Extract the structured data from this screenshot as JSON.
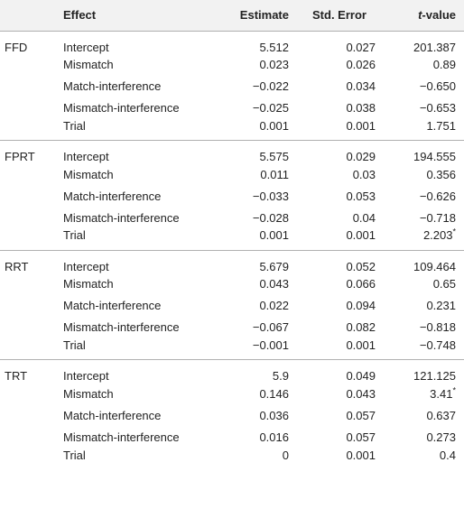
{
  "headers": {
    "group": "",
    "effect": "Effect",
    "estimate": "Estimate",
    "std_error": "Std. Error",
    "t_value_italic": "t",
    "t_value_rest": "-value"
  },
  "groups": [
    {
      "label": "FFD",
      "rows": [
        {
          "effect": "Intercept",
          "estimate": "5.512",
          "se": "0.027",
          "t": "201.387",
          "sig": ""
        },
        {
          "effect": "Mismatch",
          "estimate": "0.023",
          "se": "0.026",
          "t": "0.89",
          "sig": ""
        },
        {
          "effect": "Match-interference",
          "estimate": "−0.022",
          "se": "0.034",
          "t": "−0.650",
          "sig": ""
        },
        {
          "effect": "Mismatch-interference",
          "estimate": "−0.025",
          "se": "0.038",
          "t": "−0.653",
          "sig": ""
        },
        {
          "effect": "Trial",
          "estimate": "0.001",
          "se": "0.001",
          "t": "1.751",
          "sig": ""
        }
      ]
    },
    {
      "label": "FPRT",
      "rows": [
        {
          "effect": "Intercept",
          "estimate": "5.575",
          "se": "0.029",
          "t": "194.555",
          "sig": ""
        },
        {
          "effect": "Mismatch",
          "estimate": "0.011",
          "se": "0.03",
          "t": "0.356",
          "sig": ""
        },
        {
          "effect": "Match-interference",
          "estimate": "−0.033",
          "se": "0.053",
          "t": "−0.626",
          "sig": ""
        },
        {
          "effect": "Mismatch-interference",
          "estimate": "−0.028",
          "se": "0.04",
          "t": "−0.718",
          "sig": ""
        },
        {
          "effect": "Trial",
          "estimate": "0.001",
          "se": "0.001",
          "t": "2.203",
          "sig": "*"
        }
      ]
    },
    {
      "label": "RRT",
      "rows": [
        {
          "effect": "Intercept",
          "estimate": "5.679",
          "se": "0.052",
          "t": "109.464",
          "sig": ""
        },
        {
          "effect": "Mismatch",
          "estimate": "0.043",
          "se": "0.066",
          "t": "0.65",
          "sig": ""
        },
        {
          "effect": "Match-interference",
          "estimate": "0.022",
          "se": "0.094",
          "t": "0.231",
          "sig": ""
        },
        {
          "effect": "Mismatch-interference",
          "estimate": "−0.067",
          "se": "0.082",
          "t": "−0.818",
          "sig": ""
        },
        {
          "effect": "Trial",
          "estimate": "−0.001",
          "se": "0.001",
          "t": "−0.748",
          "sig": ""
        }
      ]
    },
    {
      "label": "TRT",
      "rows": [
        {
          "effect": "Intercept",
          "estimate": "5.9",
          "se": "0.049",
          "t": "121.125",
          "sig": ""
        },
        {
          "effect": "Mismatch",
          "estimate": "0.146",
          "se": "0.043",
          "t": "3.41",
          "sig": "*"
        },
        {
          "effect": "Match-interference",
          "estimate": "0.036",
          "se": "0.057",
          "t": "0.637",
          "sig": ""
        },
        {
          "effect": "Mismatch-interference",
          "estimate": "0.016",
          "se": "0.057",
          "t": "0.273",
          "sig": ""
        },
        {
          "effect": "Trial",
          "estimate": "0",
          "se": "0.001",
          "t": "0.4",
          "sig": ""
        }
      ]
    }
  ]
}
